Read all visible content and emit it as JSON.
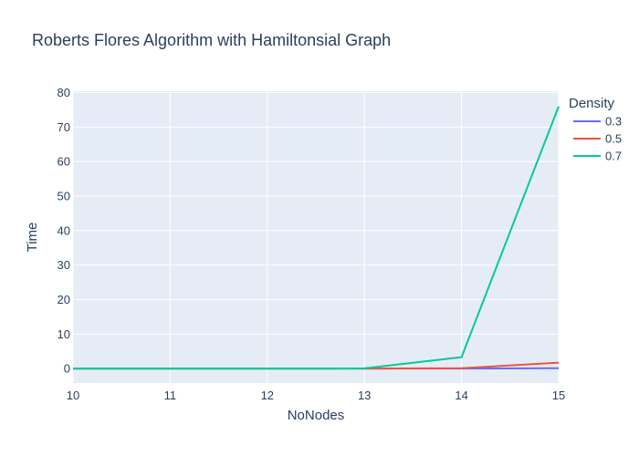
{
  "chart_data": {
    "type": "line",
    "title": "Roberts Flores Algorithm with Hamiltonsial Graph",
    "xlabel": "NoNodes",
    "ylabel": "Time",
    "x": [
      10,
      11,
      12,
      13,
      14,
      15
    ],
    "xlim": [
      10,
      15
    ],
    "ylim": [
      -4.2,
      80.4
    ],
    "xticks": [
      10,
      11,
      12,
      13,
      14,
      15
    ],
    "yticks": [
      0,
      10,
      20,
      30,
      40,
      50,
      60,
      70,
      80
    ],
    "grid": true,
    "legend": {
      "title": "Density",
      "position": "top-right"
    },
    "series": [
      {
        "name": "0.3",
        "color": "#636efa",
        "values": [
          0,
          0,
          0,
          0,
          0,
          0.1
        ]
      },
      {
        "name": "0.5",
        "color": "#ef553b",
        "values": [
          0,
          0,
          0,
          0,
          0.1,
          1.7
        ]
      },
      {
        "name": "0.7",
        "color": "#00cc96",
        "values": [
          0,
          0,
          0,
          0.05,
          3.3,
          76
        ]
      }
    ],
    "colors": {
      "plot_background": "#e5ecf6",
      "grid": "#ffffff",
      "text": "#2a3f5f"
    }
  }
}
